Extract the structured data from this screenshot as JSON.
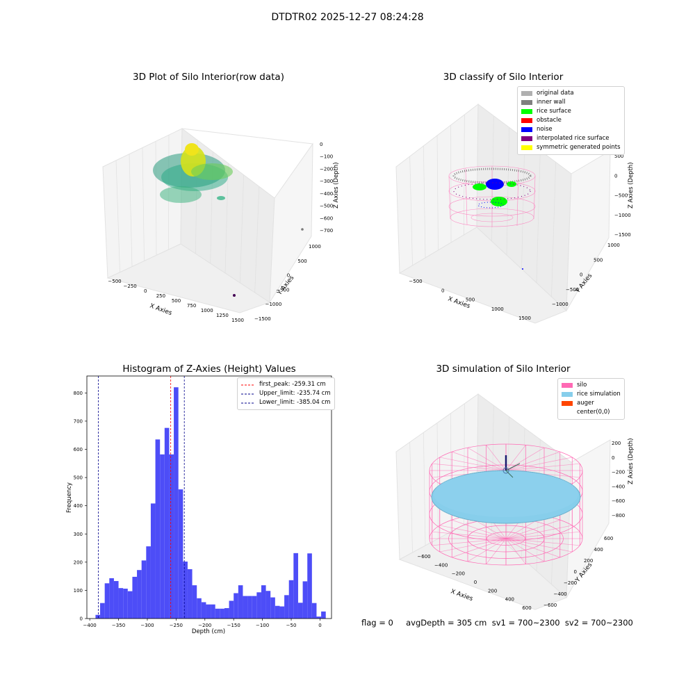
{
  "suptitle": "DTDTR02 2025-12-27 08:24:28",
  "colors": {
    "hist": "#4d4df7",
    "pink": "#ff69b4",
    "skyblue": "#87ceeb",
    "grid": "#e6e6e6",
    "pane": "#f2f2f2",
    "viridis_low": "#2a9a7e",
    "viridis_high": "#e4e419"
  },
  "panels": {
    "raw": {
      "title": "3D Plot of Silo Interior(row data)",
      "xlabel": "X Axies",
      "ylabel": "Y Axies",
      "zlabel": "Z Axies (Depth)",
      "xticks": [
        "−500",
        "−250",
        "0",
        "250",
        "500",
        "750",
        "1000",
        "1250",
        "1500"
      ],
      "yticks": [
        "−1500",
        "−1000",
        "−500",
        "0",
        "500",
        "1000"
      ],
      "zticks": [
        "0",
        "−100",
        "−200",
        "−300",
        "−400",
        "−500",
        "−600",
        "−700"
      ]
    },
    "classify": {
      "title": "3D classify of Silo Interior",
      "xlabel": "X Axies",
      "ylabel": "Y Axies",
      "zlabel": "Z Axies (Depth)",
      "xticks": [
        "−500",
        "0",
        "500",
        "1000",
        "1500"
      ],
      "yticks": [
        "−1000",
        "−500",
        "0",
        "500",
        "1000"
      ],
      "zticks": [
        "500",
        "0",
        "−500",
        "−1000",
        "−1500"
      ],
      "legend": [
        {
          "label": "original data",
          "color": "#b0b0b0"
        },
        {
          "label": "inner wall",
          "color": "#808080"
        },
        {
          "label": "rice surface",
          "color": "#00ff00"
        },
        {
          "label": "obstacle",
          "color": "#ff0000"
        },
        {
          "label": "noise",
          "color": "#0000ff"
        },
        {
          "label": "interpolated rice surface",
          "color": "#800080"
        },
        {
          "label": "symmetric generated points",
          "color": "#ffff00"
        }
      ]
    },
    "simulation": {
      "title": "3D simulation of Silo Interior",
      "xlabel": "X Axies",
      "ylabel": "Y Axies",
      "zlabel": "Z Axies (Depth)",
      "xticks": [
        "−600",
        "−400",
        "−200",
        "0",
        "200",
        "400",
        "600"
      ],
      "yticks": [
        "−600",
        "−400",
        "−200",
        "0",
        "200",
        "400",
        "600"
      ],
      "zticks": [
        "200",
        "0",
        "−200",
        "−400",
        "−600",
        "−800"
      ],
      "legend": [
        {
          "label": "silo",
          "color": "#ff69b4"
        },
        {
          "label": "rice simulation",
          "color": "#87ceeb"
        },
        {
          "label": "auger",
          "color": "#ff4500"
        },
        {
          "label": "center(0,0)",
          "color": "#ffffff"
        }
      ]
    }
  },
  "status_line": "flag = 0     avgDepth = 305 cm  sv1 = 700~2300  sv2 = 700~2300",
  "chart_data": [
    {
      "type": "bar",
      "title": "Histogram of Z-Axies (Height) Values",
      "xlabel": "Depth (cm)",
      "ylabel": "Frequency",
      "xlim": [
        -405,
        20
      ],
      "ylim": [
        0,
        860
      ],
      "xticks": [
        -400,
        -350,
        -300,
        -250,
        -200,
        -150,
        -100,
        -50,
        0
      ],
      "yticks": [
        0,
        100,
        200,
        300,
        400,
        500,
        600,
        700,
        800
      ],
      "bin_start": -390,
      "bin_width": 8,
      "values": [
        13,
        55,
        125,
        143,
        133,
        108,
        106,
        97,
        148,
        172,
        206,
        256,
        408,
        635,
        582,
        676,
        582,
        820,
        458,
        202,
        175,
        118,
        72,
        58,
        50,
        50,
        35,
        35,
        37,
        63,
        90,
        118,
        80,
        80,
        80,
        93,
        118,
        98,
        75,
        45,
        43,
        83,
        136,
        232,
        56,
        132,
        231,
        55,
        7,
        25
      ],
      "lines": [
        {
          "label": "first_peak: -259.31 cm",
          "x": -259.31,
          "color": "#ff0000"
        },
        {
          "label": "Upper_limit: -235.74 cm",
          "x": -235.74,
          "color": "#00008b"
        },
        {
          "label": "Lower_limit: -385.04 cm",
          "x": -385.04,
          "color": "#00008b"
        }
      ],
      "legend_position": "upper right"
    }
  ]
}
